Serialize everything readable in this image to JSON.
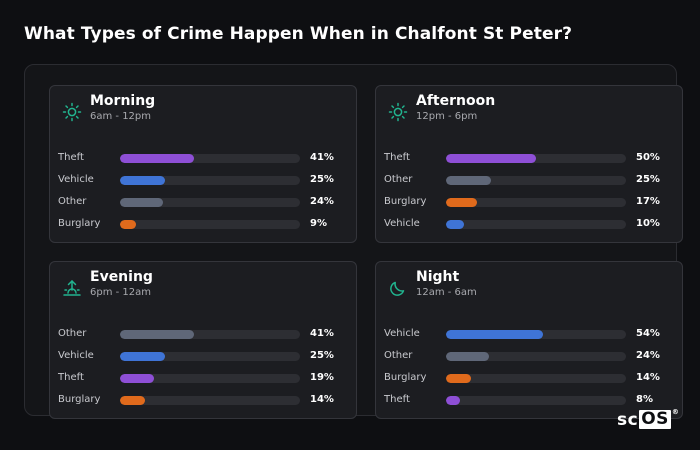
{
  "page_title": "What Types of Crime Happen When in Chalfont St Peter?",
  "colors": {
    "Theft": "#8e4fd6",
    "Vehicle": "#3f74d6",
    "Other": "#5f6778",
    "Burglary": "#e06a1c",
    "icon_accent": "#21b48f"
  },
  "cards": [
    {
      "title": "Morning",
      "subtitle": "6am - 12pm",
      "icon": "sun-icon",
      "rows": [
        {
          "label": "Theft",
          "value": 41,
          "pct": "41%"
        },
        {
          "label": "Vehicle",
          "value": 25,
          "pct": "25%"
        },
        {
          "label": "Other",
          "value": 24,
          "pct": "24%"
        },
        {
          "label": "Burglary",
          "value": 9,
          "pct": "9%"
        }
      ]
    },
    {
      "title": "Afternoon",
      "subtitle": "12pm - 6pm",
      "icon": "sun-icon",
      "rows": [
        {
          "label": "Theft",
          "value": 50,
          "pct": "50%"
        },
        {
          "label": "Other",
          "value": 25,
          "pct": "25%"
        },
        {
          "label": "Burglary",
          "value": 17,
          "pct": "17%"
        },
        {
          "label": "Vehicle",
          "value": 10,
          "pct": "10%"
        }
      ]
    },
    {
      "title": "Evening",
      "subtitle": "6pm - 12am",
      "icon": "sunset-icon",
      "rows": [
        {
          "label": "Other",
          "value": 41,
          "pct": "41%"
        },
        {
          "label": "Vehicle",
          "value": 25,
          "pct": "25%"
        },
        {
          "label": "Theft",
          "value": 19,
          "pct": "19%"
        },
        {
          "label": "Burglary",
          "value": 14,
          "pct": "14%"
        }
      ]
    },
    {
      "title": "Night",
      "subtitle": "12am - 6am",
      "icon": "moon-icon",
      "rows": [
        {
          "label": "Vehicle",
          "value": 54,
          "pct": "54%"
        },
        {
          "label": "Other",
          "value": 24,
          "pct": "24%"
        },
        {
          "label": "Burglary",
          "value": 14,
          "pct": "14%"
        },
        {
          "label": "Theft",
          "value": 8,
          "pct": "8%"
        }
      ]
    }
  ],
  "logo": {
    "text_left": "sc",
    "text_box": "OS",
    "reg": "®"
  }
}
